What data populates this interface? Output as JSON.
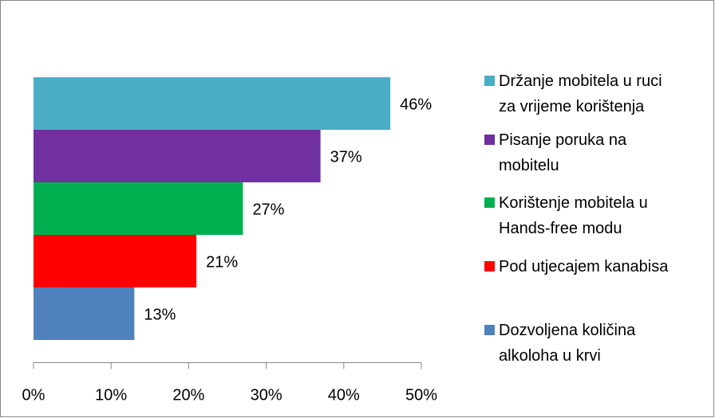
{
  "chart_data": {
    "type": "hbar",
    "categories": [
      "Držanje mobitela u ruci za vrijeme korištenja",
      "Pisanje poruka na mobitelu",
      "Korištenje mobitela u Hands-free modu",
      "Pod utjecajem kanabisa",
      "Dozvoljena količina alkoloha u krvi"
    ],
    "values": [
      46,
      37,
      27,
      21,
      13
    ],
    "value_labels": [
      "46%",
      "37%",
      "27%",
      "21%",
      "13%"
    ],
    "colors": [
      "#4bacc6",
      "#7030a0",
      "#00b050",
      "#ff0000",
      "#4f81bd"
    ],
    "xlim": [
      0,
      50
    ],
    "xticks": [
      {
        "value": 0,
        "label": "0%"
      },
      {
        "value": 10,
        "label": "10%"
      },
      {
        "value": 20,
        "label": "20%"
      },
      {
        "value": 30,
        "label": "30%"
      },
      {
        "value": 40,
        "label": "40%"
      },
      {
        "value": 50,
        "label": "50%"
      }
    ],
    "legend": "right"
  }
}
